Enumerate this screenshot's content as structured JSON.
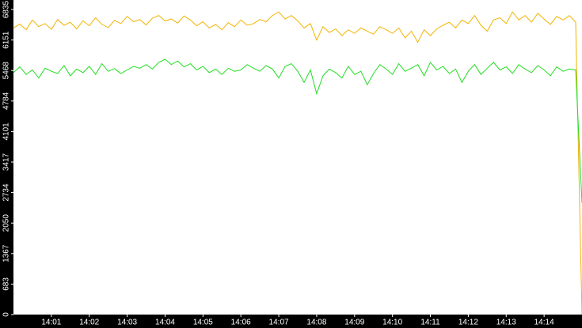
{
  "chart_data": {
    "type": "line",
    "categories": [
      null,
      null,
      null,
      null,
      null,
      null,
      "14:01",
      null,
      null,
      null,
      null,
      null,
      "14:02",
      null,
      null,
      null,
      null,
      null,
      "14:03",
      null,
      null,
      null,
      null,
      null,
      "14:04",
      null,
      null,
      null,
      null,
      null,
      "14:05",
      null,
      null,
      null,
      null,
      null,
      "14:06",
      null,
      null,
      null,
      null,
      null,
      "14:07",
      null,
      null,
      null,
      null,
      null,
      "14:08",
      null,
      null,
      null,
      null,
      null,
      "14:09",
      null,
      null,
      null,
      null,
      null,
      "14:10",
      null,
      null,
      null,
      null,
      null,
      "14:11",
      null,
      null,
      null,
      null,
      null,
      "14:12",
      null,
      null,
      null,
      null,
      null,
      "14:13",
      null,
      null,
      null,
      null,
      null,
      "14:14",
      null,
      null,
      null,
      null,
      null,
      null
    ],
    "series": [
      {
        "color": "#f0b400",
        "values": [
          6420,
          6510,
          6380,
          6600,
          6450,
          6520,
          6390,
          6610,
          6480,
          6550,
          6400,
          6580,
          6470,
          6650,
          6500,
          6430,
          6590,
          6520,
          6680,
          6560,
          6610,
          6490,
          6640,
          6700,
          6580,
          6620,
          6530,
          6690,
          6600,
          6470,
          6560,
          6420,
          6500,
          6380,
          6540,
          6450,
          6600,
          6480,
          6520,
          6610,
          6560,
          6700,
          6780,
          6620,
          6700,
          6580,
          6420,
          6520,
          6150,
          6450,
          6320,
          6400,
          6250,
          6380,
          6300,
          6420,
          6350,
          6280,
          6450,
          6380,
          6300,
          6420,
          6200,
          6350,
          6100,
          6380,
          6250,
          6400,
          6480,
          6550,
          6420,
          6600,
          6520,
          6700,
          6480,
          6350,
          6600,
          6650,
          6520,
          6780,
          6600,
          6700,
          6550,
          6750,
          6620,
          6500,
          6680,
          6600,
          6700,
          6550,
          0
        ]
      },
      {
        "color": "#22dd22",
        "values": [
          5420,
          5550,
          5380,
          5480,
          5300,
          5520,
          5450,
          5400,
          5580,
          5350,
          5500,
          5420,
          5560,
          5380,
          5620,
          5450,
          5510,
          5400,
          5480,
          5560,
          5520,
          5600,
          5500,
          5650,
          5720,
          5600,
          5680,
          5550,
          5620,
          5480,
          5560,
          5420,
          5500,
          5380,
          5520,
          5450,
          5480,
          5600,
          5520,
          5450,
          5580,
          5500,
          5300,
          5560,
          5620,
          5450,
          5200,
          5480,
          4950,
          5350,
          5500,
          5420,
          5300,
          5560,
          5380,
          5450,
          5150,
          5400,
          5600,
          5500,
          5380,
          5620,
          5450,
          5520,
          5600,
          5350,
          5650,
          5480,
          5560,
          5400,
          5500,
          5200,
          5450,
          5600,
          5380,
          5520,
          5650,
          5480,
          5550,
          5400,
          5600,
          5500,
          5420,
          5580,
          5480,
          5350,
          5550,
          5450,
          5500,
          5480,
          2500
        ]
      }
    ],
    "ylim": [
      0,
      6835
    ],
    "yticks": [
      0,
      683,
      1367,
      2050,
      2734,
      3417,
      4101,
      4784,
      5468,
      6151,
      6835
    ]
  }
}
